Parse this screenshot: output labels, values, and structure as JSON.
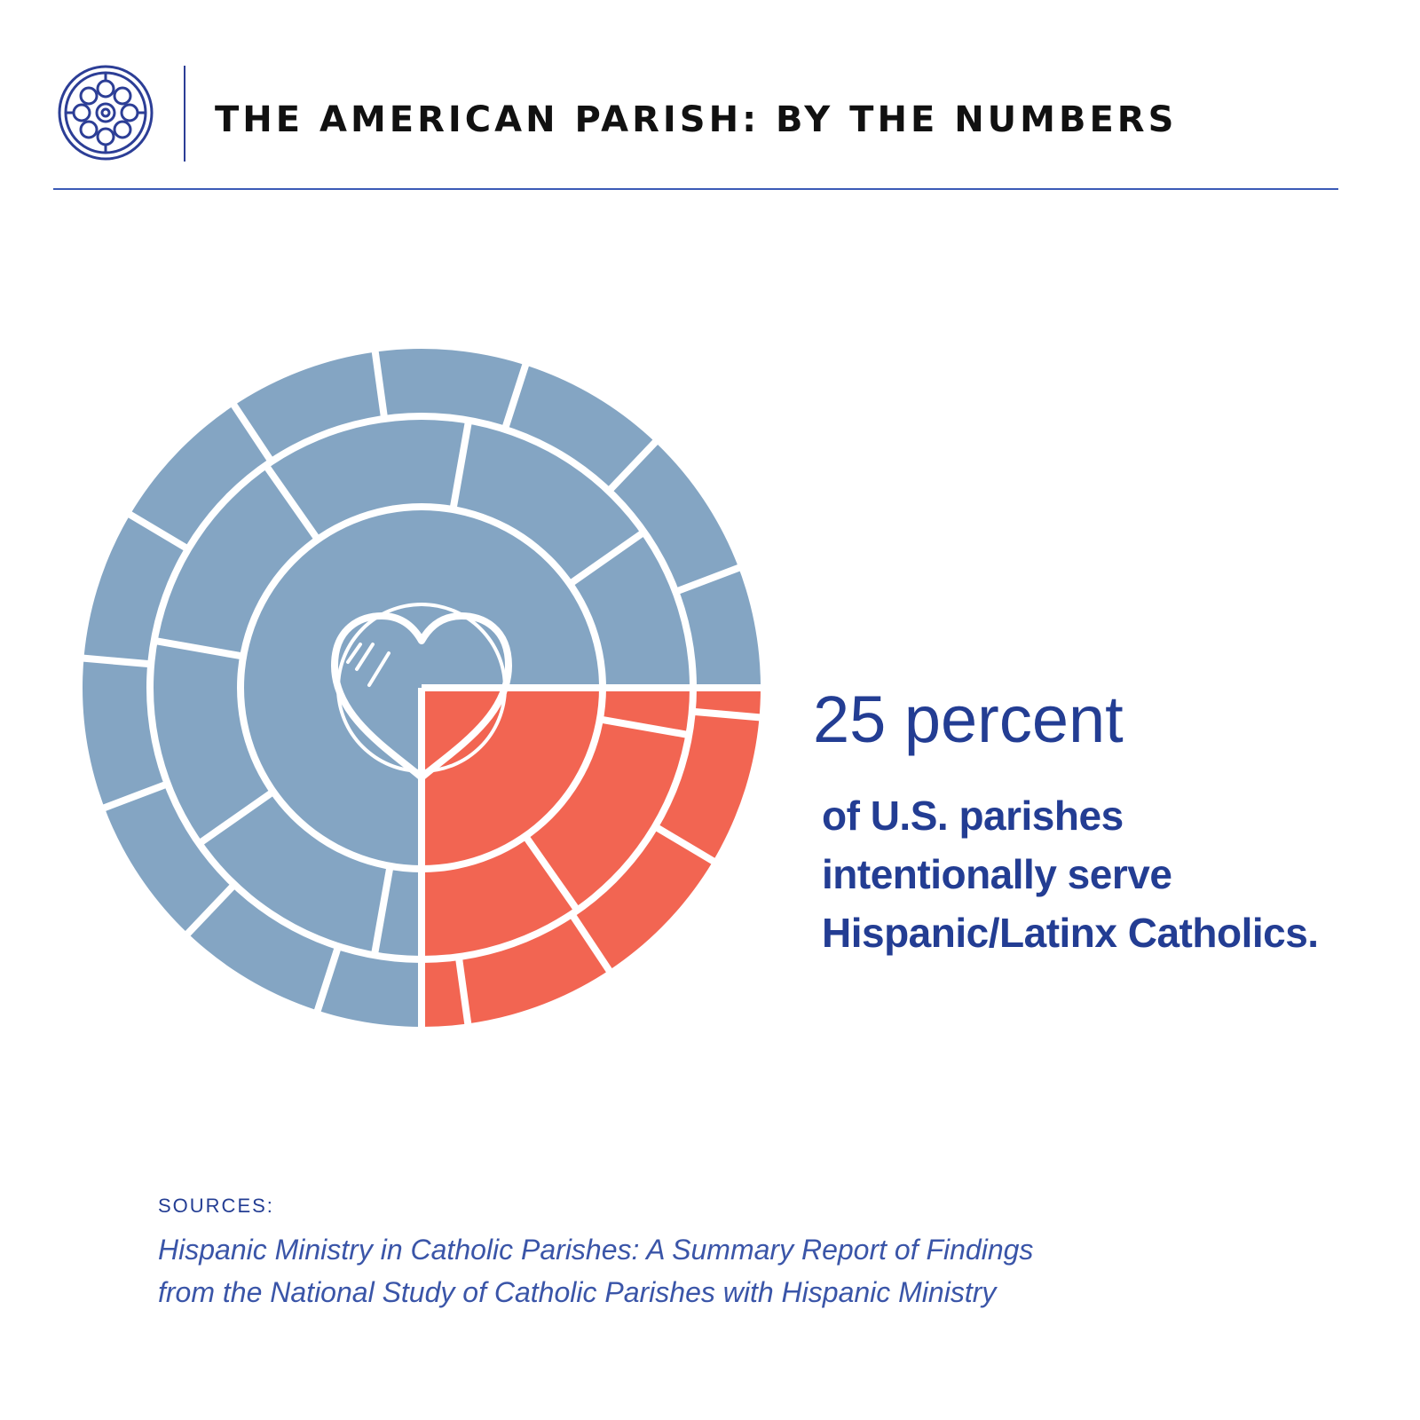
{
  "header": {
    "title": "THE AMERICAN PARISH: BY THE NUMBERS",
    "logo_icon": "rose-window-icon"
  },
  "colors": {
    "brand_blue": "#233d93",
    "highlight": "#f26552",
    "base": "#84a5c3"
  },
  "stat": {
    "headline": "25 percent",
    "description_lines": [
      "of U.S. parishes",
      "intentionally serve",
      "Hispanic/Latinx Catholics."
    ]
  },
  "chart_data": {
    "type": "pie",
    "values": [
      25,
      75
    ],
    "highlight_percent": 25,
    "center_icon": "heart-icon"
  },
  "sources": {
    "label": "SOURCES:",
    "lines": [
      "Hispanic Ministry in Catholic Parishes: A Summary Report of Findings",
      "from the National Study of Catholic Parishes with Hispanic Ministry"
    ]
  }
}
